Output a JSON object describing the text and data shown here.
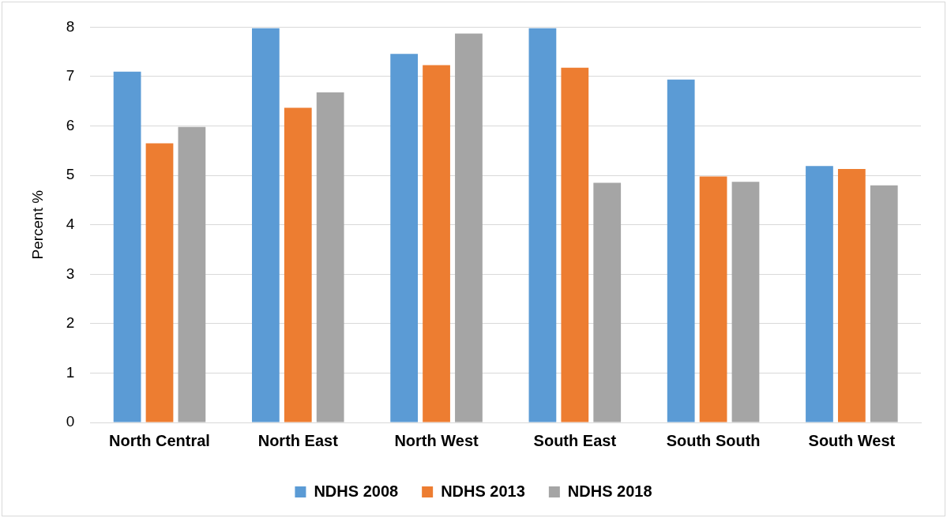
{
  "chart_data": {
    "type": "bar",
    "ylabel": "Percent %",
    "categories": [
      "North Central",
      "North East",
      "North West",
      "South East",
      "South South",
      "South West"
    ],
    "series": [
      {
        "name": "NDHS 2008",
        "color": "#5b9bd5",
        "values": [
          7.1,
          7.98,
          7.46,
          7.98,
          6.94,
          5.19
        ]
      },
      {
        "name": "NDHS 2013",
        "color": "#ed7d31",
        "values": [
          5.65,
          6.37,
          7.23,
          7.18,
          4.98,
          5.13
        ]
      },
      {
        "name": "NDHS 2018",
        "color": "#a5a5a5",
        "values": [
          5.98,
          6.68,
          7.87,
          4.85,
          4.87,
          4.8
        ]
      }
    ],
    "ylim": [
      0,
      8
    ],
    "yticks": [
      0,
      1,
      2,
      3,
      4,
      5,
      6,
      7,
      8
    ],
    "grid": "y",
    "legend": "bottom"
  }
}
